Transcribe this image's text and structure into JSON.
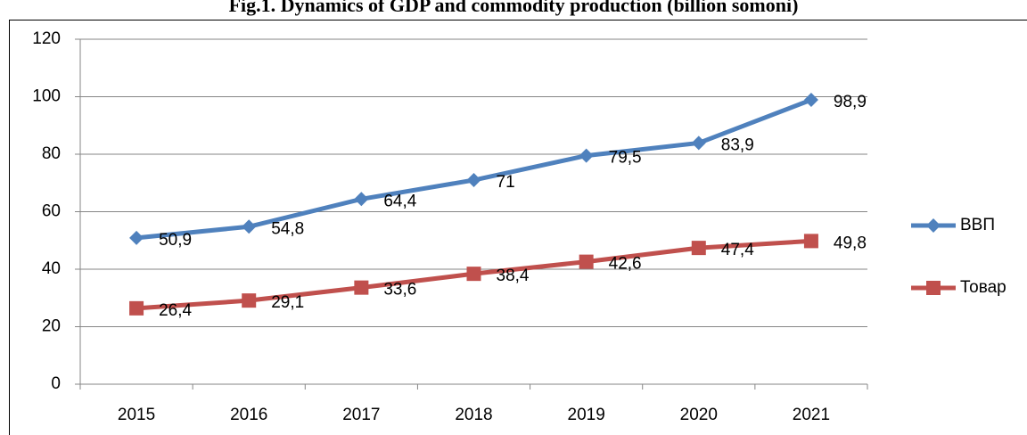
{
  "chart_data": {
    "type": "line",
    "title": "Fig.1. Dynamics of GDP and commodity production (billion somoni)",
    "categories": [
      "2015",
      "2016",
      "2017",
      "2018",
      "2019",
      "2020",
      "2021"
    ],
    "series": [
      {
        "name": "ВВП",
        "color": "#4f81bd",
        "marker": "diamond",
        "values": [
          50.9,
          54.8,
          64.4,
          71,
          79.5,
          83.9,
          98.9
        ],
        "value_labels": [
          "50,9",
          "54,8",
          "64,4",
          "71",
          "79,5",
          "83,9",
          "98,9"
        ]
      },
      {
        "name": "Товар",
        "color": "#c0504d",
        "marker": "square",
        "values": [
          26.4,
          29.1,
          33.6,
          38.4,
          42.6,
          47.4,
          49.8
        ],
        "value_labels": [
          "26,4",
          "29,1",
          "33,6",
          "38,4",
          "42,6",
          "47,4",
          "49,8"
        ]
      }
    ],
    "ylim": [
      0,
      120
    ],
    "yticks": [
      0,
      20,
      40,
      60,
      80,
      100,
      120
    ],
    "grid": true,
    "legend": "right"
  }
}
